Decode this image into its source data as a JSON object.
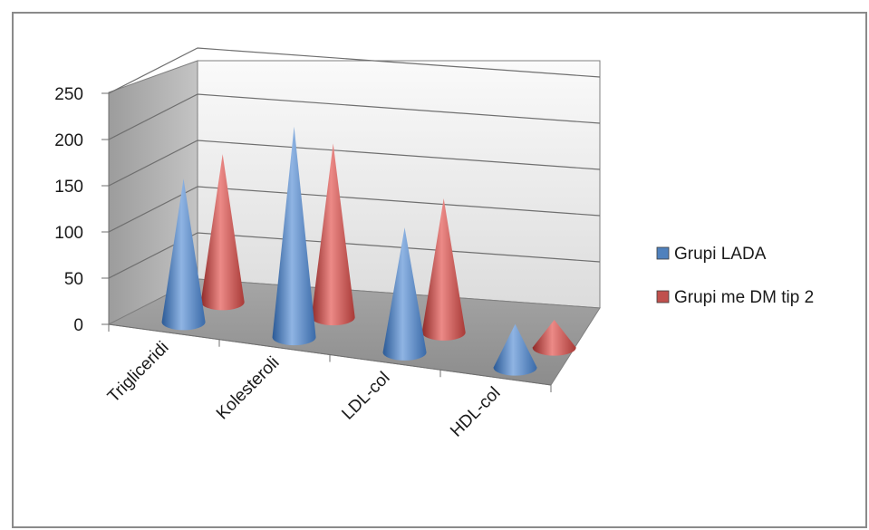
{
  "chart_data": {
    "type": "bar",
    "style": "3d-cone",
    "categories": [
      "Trigliceridi",
      "Kolesteroli",
      "LDL-col",
      "HDL-col"
    ],
    "series": [
      {
        "name": "Grupi LADA",
        "values": [
          155,
          228,
          135,
          47
        ],
        "color": "#4f81bd"
      },
      {
        "name": "Grupi me DM tip 2",
        "values": [
          160,
          188,
          145,
          30
        ],
        "color": "#c0504d"
      }
    ],
    "yticks": [
      0,
      50,
      100,
      150,
      200,
      250
    ],
    "ylim": [
      0,
      250
    ],
    "grid": true,
    "legend_position": "right"
  }
}
